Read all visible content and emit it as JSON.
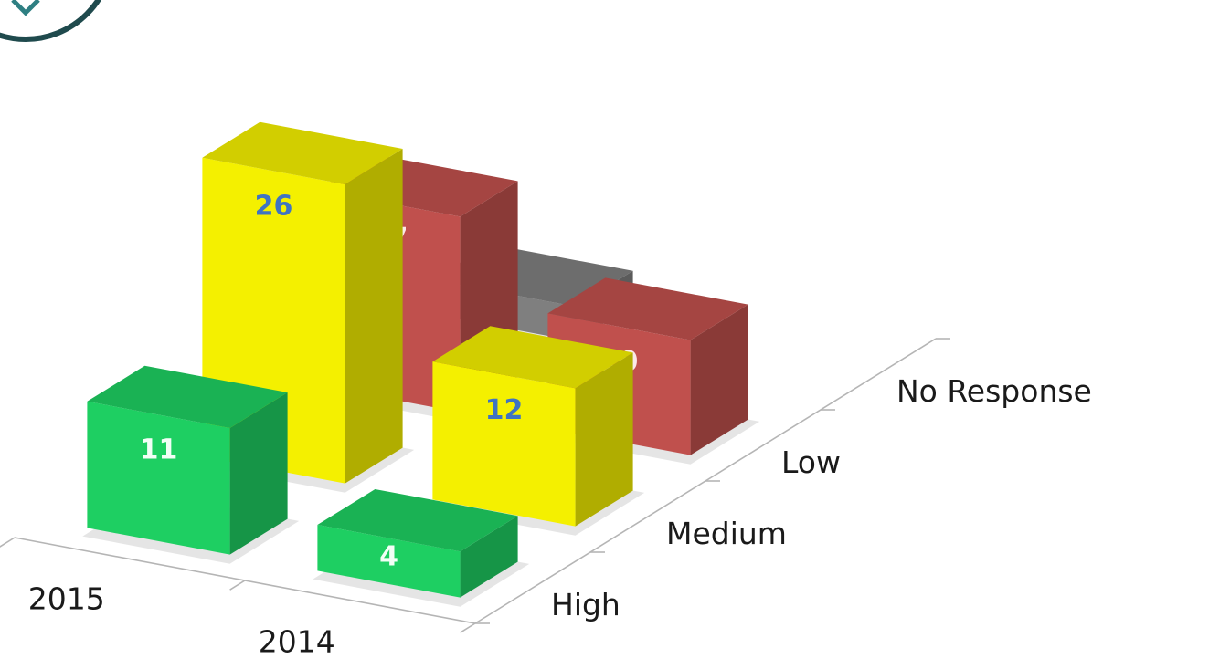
{
  "chart_data": {
    "type": "bar",
    "subtype": "3d-column",
    "categories": [
      "2014",
      "2015"
    ],
    "series": [
      {
        "name": "High",
        "values": [
          4,
          11
        ],
        "color": "#1ecf62",
        "label_color": "#f2fff6"
      },
      {
        "name": "Medium",
        "values": [
          12,
          26
        ],
        "color": "#f4f000",
        "label_color": "#3f74c2"
      },
      {
        "name": "Low",
        "values": [
          10,
          17
        ],
        "color": "#c0504d",
        "label_color": "#fbe9e8"
      },
      {
        "name": "No Response",
        "values": [
          0,
          3
        ],
        "color": "#7f7f7f",
        "label_color": "#ffffff"
      }
    ],
    "value_labels": [
      [
        "4",
        "11"
      ],
      [
        "12",
        "26"
      ],
      [
        "10",
        "17"
      ],
      [
        "",
        "3"
      ]
    ],
    "ylim": [
      0,
      31
    ],
    "grid": false,
    "legend": "none"
  }
}
